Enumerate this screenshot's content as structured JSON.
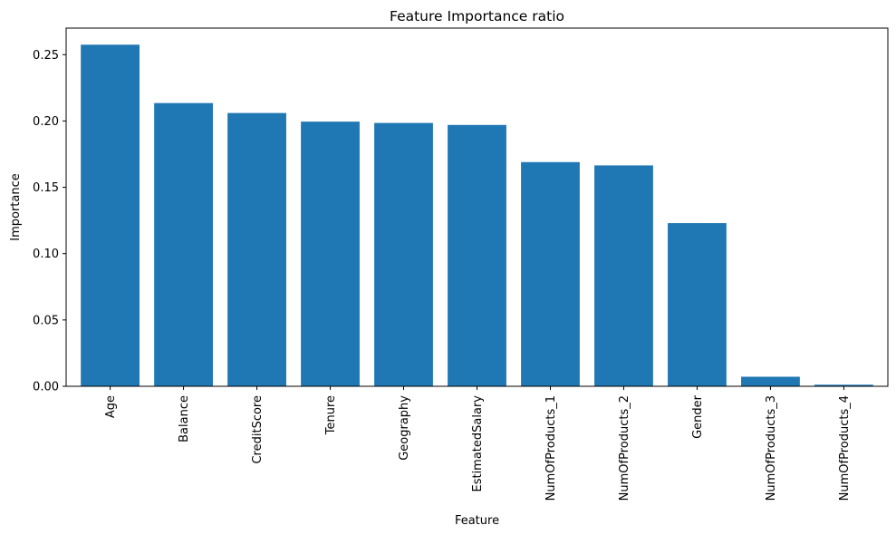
{
  "chart_data": {
    "type": "bar",
    "title": "Feature Importance ratio",
    "xlabel": "Feature",
    "ylabel": "Importance",
    "categories": [
      "Age",
      "Balance",
      "CreditScore",
      "Tenure",
      "Geography",
      "EstimatedSalary",
      "NumOfProducts_1",
      "NumOfProducts_2",
      "Gender",
      "NumOfProducts_3",
      "NumOfProducts_4"
    ],
    "values": [
      0.2575,
      0.2135,
      0.206,
      0.1995,
      0.1985,
      0.197,
      0.169,
      0.1665,
      0.123,
      0.0072,
      0.0012
    ],
    "ylim": [
      0,
      0.27
    ],
    "yticks": [
      0.0,
      0.05,
      0.1,
      0.15,
      0.2,
      0.25
    ],
    "ytick_labels": [
      "0.00",
      "0.05",
      "0.10",
      "0.15",
      "0.20",
      "0.25"
    ],
    "grid": false,
    "bar_color": "#1f77b4",
    "x_tick_rotation": "vertical"
  }
}
